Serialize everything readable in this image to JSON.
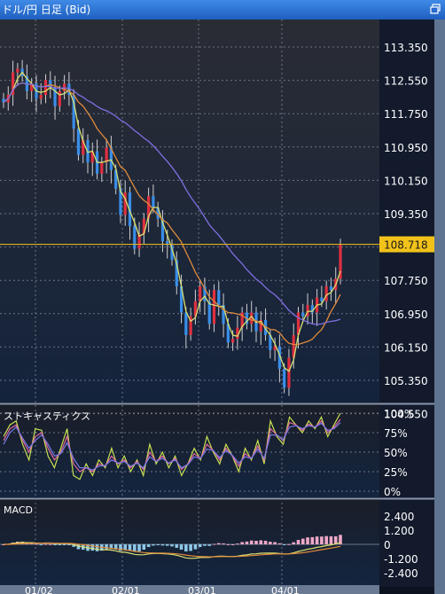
{
  "window": {
    "title": "ドル/円 日足 (Bid)"
  },
  "chart_data": [
    {
      "type": "candlestick",
      "title": "",
      "ylim": [
        104.55,
        114.0
      ],
      "yticks": [
        "113.350",
        "112.550",
        "111.750",
        "110.950",
        "110.150",
        "109.350",
        "108.550",
        "107.750",
        "106.950",
        "106.150",
        "105.350",
        "104.550"
      ],
      "current_price": "108.718",
      "current_value": 108.718,
      "xticks": [
        "01/02",
        "02/01",
        "03/01",
        "04/01"
      ],
      "close": [
        112.5,
        112.7,
        113.3,
        113.4,
        113.2,
        112.8,
        113.0,
        112.6,
        112.7,
        113.1,
        112.9,
        112.4,
        112.8,
        113.0,
        112.7,
        111.8,
        111.1,
        111.5,
        110.9,
        111.2,
        110.6,
        110.9,
        111.3,
        110.7,
        110.2,
        109.5,
        110.1,
        109.2,
        108.6,
        109.0,
        109.4,
        110.0,
        109.7,
        109.4,
        108.8,
        108.7,
        108.3,
        107.6,
        106.9,
        106.3,
        106.8,
        107.2,
        107.6,
        107.2,
        106.6,
        107.5,
        107.1,
        106.6,
        106.1,
        106.2,
        106.5,
        106.9,
        106.6,
        106.9,
        106.4,
        106.7,
        106.3,
        105.9,
        106.0,
        105.4,
        104.9,
        105.7,
        106.3,
        106.9,
        106.8,
        107.1,
        106.9,
        107.3,
        107.2,
        107.6,
        107.5,
        107.8,
        108.718
      ],
      "ma_short_label": "",
      "ma_series": [
        {
          "name": "",
          "color": "#d8e070"
        },
        {
          "name": "",
          "color": "#e08a3a"
        },
        {
          "name": "",
          "color": "#7f6fe0"
        }
      ]
    },
    {
      "type": "line",
      "title": "ストキャスティクス",
      "yticks": [
        "100%",
        "75%",
        "50%",
        "25%",
        "0%"
      ],
      "ylim": [
        0,
        100
      ],
      "series": [
        {
          "name": "",
          "color": "#c8e050",
          "values": [
            70,
            85,
            90,
            60,
            40,
            80,
            78,
            45,
            30,
            55,
            80,
            20,
            15,
            35,
            20,
            40,
            30,
            55,
            30,
            45,
            25,
            40,
            20,
            60,
            35,
            50,
            30,
            45,
            20,
            35,
            55,
            40,
            70,
            50,
            35,
            60,
            45,
            25,
            55,
            40,
            65,
            35,
            90,
            70,
            60,
            95,
            85,
            75,
            90,
            80,
            95,
            70,
            85,
            100
          ]
        },
        {
          "name": "",
          "color": "#e06aa0",
          "values": [
            65,
            80,
            85,
            65,
            50,
            70,
            75,
            55,
            40,
            50,
            70,
            35,
            25,
            30,
            25,
            35,
            32,
            45,
            35,
            40,
            30,
            38,
            28,
            50,
            38,
            45,
            35,
            42,
            28,
            35,
            48,
            42,
            60,
            52,
            40,
            55,
            45,
            32,
            48,
            42,
            58,
            40,
            80,
            72,
            65,
            88,
            85,
            78,
            86,
            82,
            90,
            75,
            82,
            92
          ]
        },
        {
          "name": "",
          "color": "#7a7ae8",
          "values": [
            60,
            75,
            82,
            68,
            55,
            65,
            72,
            60,
            45,
            48,
            62,
            42,
            30,
            30,
            27,
            32,
            33,
            40,
            36,
            38,
            32,
            36,
            30,
            44,
            38,
            42,
            36,
            40,
            30,
            34,
            44,
            42,
            54,
            52,
            43,
            52,
            46,
            36,
            44,
            42,
            54,
            42,
            72,
            72,
            66,
            82,
            84,
            80,
            84,
            82,
            87,
            78,
            80,
            88
          ]
        }
      ]
    },
    {
      "type": "bar",
      "title": "MACD",
      "yticks": [
        "2.400",
        "1.200",
        "0",
        "-1.200",
        "-2.400"
      ],
      "ylim": [
        -2.4,
        2.4
      ]
    }
  ]
}
